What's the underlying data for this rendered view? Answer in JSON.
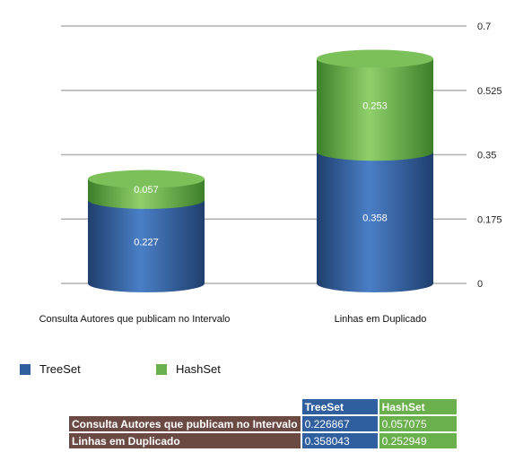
{
  "chart_data": {
    "type": "bar",
    "stacked": true,
    "style": "3d-cylinder",
    "categories": [
      "Consulta Autores que publicam no Intervalo",
      "Linhas em Duplicado"
    ],
    "series": [
      {
        "name": "TreeSet",
        "values": [
          0.227,
          0.358
        ]
      },
      {
        "name": "HashSet",
        "values": [
          0.057,
          0.253
        ]
      }
    ],
    "y_ticks": [
      "0",
      "0.175",
      "0.35",
      "0.525",
      "0.7"
    ],
    "ylim": [
      0,
      0.7
    ],
    "grid": true,
    "y_axis_side": "right",
    "legend_position": "bottom-left",
    "colors": {
      "TreeSet": "#2f5f9e",
      "HashSet": "#6ab04c"
    }
  },
  "legend": {
    "treeset_label": "TreeSet",
    "hashset_label": "HashSet"
  },
  "table": {
    "headers": [
      "TreeSet",
      "HashSet"
    ],
    "rows": [
      {
        "label": "Consulta Autores que publicam no Intervalo",
        "values": [
          "0.226867",
          "0.057075"
        ]
      },
      {
        "label": "Linhas em Duplicado",
        "values": [
          "0.358043",
          "0.252949"
        ]
      }
    ]
  }
}
